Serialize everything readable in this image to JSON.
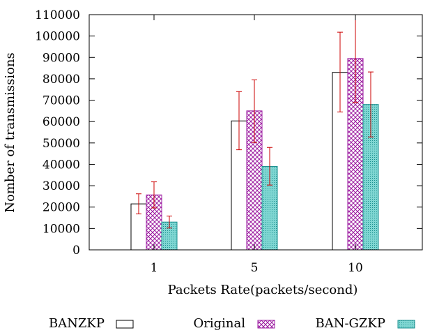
{
  "chart_data": {
    "type": "bar",
    "title": "",
    "xlabel": "Packets Rate(packets/second)",
    "ylabel": "Nomber of transmissions",
    "categories": [
      "1",
      "5",
      "10"
    ],
    "ylim": [
      0,
      110000
    ],
    "ytick_step": 10000,
    "ytick_labels": [
      "0",
      "10000",
      "20000",
      "30000",
      "40000",
      "50000",
      "60000",
      "70000",
      "80000",
      "90000",
      "100000",
      "110000"
    ],
    "error_bar_color": "#cc0000",
    "legend_position": "bottom",
    "series": [
      {
        "name": "BANZKP",
        "pattern": "open",
        "color": "#000000",
        "fill": "#ffffff",
        "values": [
          21500,
          60300,
          83000
        ],
        "err_low": [
          16800,
          46800,
          64500
        ],
        "err_high": [
          26200,
          74000,
          101800
        ]
      },
      {
        "name": "Original",
        "pattern": "crosshatch",
        "color": "#9b1aa0",
        "fill": "#ffffff",
        "values": [
          25700,
          65000,
          89500
        ],
        "err_low": [
          19600,
          50200,
          69000
        ],
        "err_high": [
          31800,
          79500,
          110000
        ]
      },
      {
        "name": "BAN-GZKP",
        "pattern": "dotted",
        "color": "#1a8f8f",
        "fill": "#7fd6d2",
        "values": [
          13000,
          39000,
          68000
        ],
        "err_low": [
          10200,
          30300,
          52800
        ],
        "err_high": [
          15800,
          47900,
          83200
        ]
      }
    ]
  }
}
